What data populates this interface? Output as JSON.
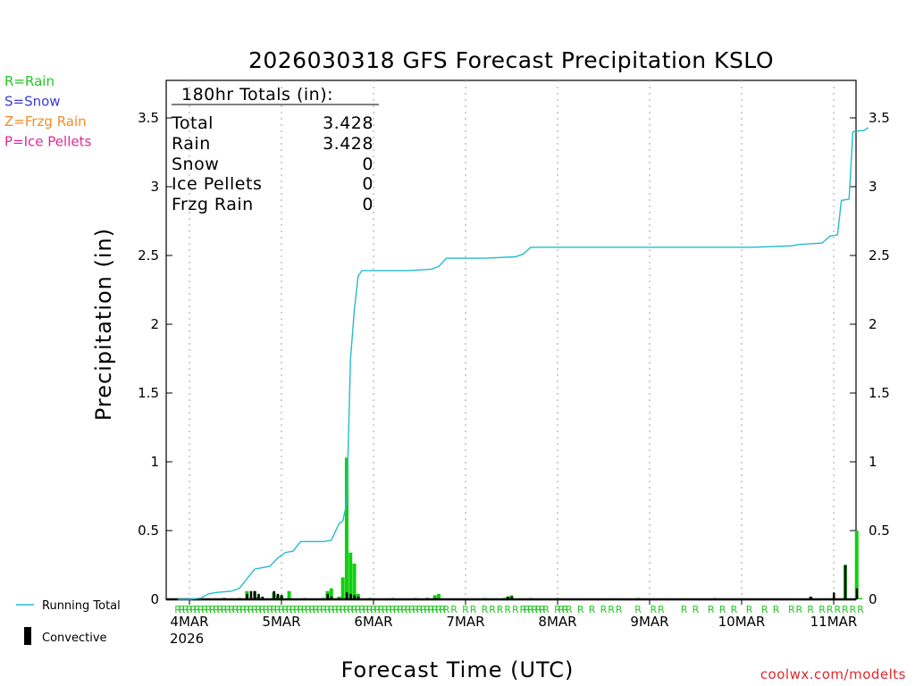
{
  "chart_data": {
    "type": "bar+line",
    "title": "2026030318 GFS Forecast Precipitation KSLO",
    "xlabel": "Forecast Time (UTC)",
    "ylabel": "Precipitation (in)",
    "ylim": [
      0,
      3.8
    ],
    "y_ticks": [
      "0",
      "0.5",
      "1",
      "1.5",
      "2",
      "2.5",
      "3",
      "3.5"
    ],
    "x_ticks": [
      "4MAR",
      "5MAR",
      "6MAR",
      "7MAR",
      "8MAR",
      "9MAR",
      "10MAR",
      "11MAR"
    ],
    "x_year": "2026",
    "x_range_hours": [
      0,
      180
    ],
    "ptype_legend": [
      {
        "label": "R=Rain",
        "color": "#22c822"
      },
      {
        "label": "S=Snow",
        "color": "#3a3ad8"
      },
      {
        "label": "Z=Frzg Rain",
        "color": "#f08c28"
      },
      {
        "label": "P=Ice Pellets",
        "color": "#e0289a"
      }
    ],
    "series_legend": [
      {
        "name": "Running Total",
        "color": "#22bcd0"
      },
      {
        "name": "Convective",
        "color": "#000000"
      }
    ],
    "totals": {
      "header": "180hr Totals (in):",
      "rows": [
        {
          "label": "Total",
          "value": "3.428"
        },
        {
          "label": "Rain",
          "value": "3.428"
        },
        {
          "label": "Snow",
          "value": "0"
        },
        {
          "label": "Ice Pellets",
          "value": "0"
        },
        {
          "label": "Frzg Rain",
          "value": "0"
        }
      ]
    },
    "running_total": [
      [
        0,
        0.0
      ],
      [
        3,
        0.0
      ],
      [
        6,
        0.01
      ],
      [
        8,
        0.04
      ],
      [
        10,
        0.05
      ],
      [
        14,
        0.06
      ],
      [
        16,
        0.08
      ],
      [
        18,
        0.15
      ],
      [
        20,
        0.22
      ],
      [
        22,
        0.23
      ],
      [
        24,
        0.24
      ],
      [
        26,
        0.3
      ],
      [
        28,
        0.34
      ],
      [
        30,
        0.35
      ],
      [
        32,
        0.42
      ],
      [
        34,
        0.42
      ],
      [
        36,
        0.42
      ],
      [
        38,
        0.42
      ],
      [
        40,
        0.43
      ],
      [
        42,
        0.55
      ],
      [
        43,
        0.57
      ],
      [
        44,
        0.7
      ],
      [
        45,
        1.75
      ],
      [
        46,
        2.1
      ],
      [
        47,
        2.35
      ],
      [
        48,
        2.39
      ],
      [
        50,
        2.39
      ],
      [
        60,
        2.39
      ],
      [
        66,
        2.4
      ],
      [
        68,
        2.42
      ],
      [
        70,
        2.48
      ],
      [
        80,
        2.48
      ],
      [
        88,
        2.49
      ],
      [
        90,
        2.51
      ],
      [
        92,
        2.56
      ],
      [
        110,
        2.56
      ],
      [
        130,
        2.56
      ],
      [
        150,
        2.56
      ],
      [
        160,
        2.57
      ],
      [
        162,
        2.58
      ],
      [
        168,
        2.59
      ],
      [
        170,
        2.64
      ],
      [
        172,
        2.65
      ],
      [
        173,
        2.9
      ],
      [
        175,
        2.91
      ],
      [
        176,
        3.4
      ],
      [
        179,
        3.41
      ],
      [
        180,
        3.43
      ]
    ],
    "precip_bars": [
      [
        5,
        0.01
      ],
      [
        12,
        0.01
      ],
      [
        16,
        0.01
      ],
      [
        18,
        0.06
      ],
      [
        20,
        0.06
      ],
      [
        21,
        0.02
      ],
      [
        22,
        0.01
      ],
      [
        25,
        0.05
      ],
      [
        26,
        0.03
      ],
      [
        27,
        0.03
      ],
      [
        29,
        0.06
      ],
      [
        33,
        0.01
      ],
      [
        38,
        0.01
      ],
      [
        39,
        0.06
      ],
      [
        40,
        0.08
      ],
      [
        42,
        0.02
      ],
      [
        43,
        0.16
      ],
      [
        44,
        1.03
      ],
      [
        45,
        0.34
      ],
      [
        46,
        0.26
      ],
      [
        47,
        0.04
      ],
      [
        50,
        0.01
      ],
      [
        56,
        0.01
      ],
      [
        62,
        0.01
      ],
      [
        65,
        0.01
      ],
      [
        67,
        0.03
      ],
      [
        68,
        0.04
      ],
      [
        80,
        0.01
      ],
      [
        85,
        0.01
      ],
      [
        86,
        0.02
      ],
      [
        87,
        0.03
      ],
      [
        92,
        0.01
      ],
      [
        99,
        0.01
      ],
      [
        120,
        0.01
      ],
      [
        140,
        0.01
      ],
      [
        165,
        0.02
      ],
      [
        171,
        0.01
      ],
      [
        174,
        0.25
      ],
      [
        177,
        0.5
      ],
      [
        178,
        0.01
      ]
    ],
    "convective_bars": [
      [
        5,
        0.01
      ],
      [
        12,
        0.01
      ],
      [
        18,
        0.04
      ],
      [
        19,
        0.06
      ],
      [
        20,
        0.06
      ],
      [
        21,
        0.04
      ],
      [
        22,
        0.02
      ],
      [
        25,
        0.06
      ],
      [
        26,
        0.04
      ],
      [
        27,
        0.03
      ],
      [
        39,
        0.04
      ],
      [
        40,
        0.02
      ],
      [
        44,
        0.05
      ],
      [
        45,
        0.04
      ],
      [
        46,
        0.03
      ],
      [
        47,
        0.02
      ],
      [
        65,
        0.01
      ],
      [
        67,
        0.01
      ],
      [
        86,
        0.02
      ],
      [
        87,
        0.02
      ],
      [
        165,
        0.02
      ],
      [
        171,
        0.05
      ],
      [
        174,
        0.25
      ],
      [
        177,
        0.08
      ]
    ],
    "rain_marker_hours": [
      0,
      1,
      2,
      3,
      4,
      5,
      6,
      7,
      8,
      9,
      10,
      11,
      12,
      13,
      14,
      15,
      16,
      17,
      18,
      19,
      20,
      21,
      22,
      23,
      24,
      25,
      26,
      27,
      28,
      29,
      30,
      31,
      32,
      33,
      34,
      35,
      36,
      37,
      38,
      39,
      40,
      41,
      42,
      43,
      44,
      45,
      46,
      47,
      48,
      49,
      50,
      51,
      52,
      53,
      54,
      55,
      56,
      57,
      58,
      59,
      60,
      61,
      62,
      63,
      64,
      65,
      66,
      67,
      68,
      69,
      70,
      72,
      75,
      77,
      80,
      82,
      84,
      86,
      88,
      90,
      91,
      92,
      93,
      94,
      95,
      96,
      99,
      100,
      101,
      102,
      105,
      108,
      111,
      113,
      115,
      120,
      124,
      126,
      132,
      135,
      139,
      142,
      145,
      149,
      153,
      156,
      160,
      162,
      165,
      168,
      170,
      172,
      174,
      176,
      178
    ]
  },
  "footer": {
    "credit": "coolwx.com/modelts"
  }
}
